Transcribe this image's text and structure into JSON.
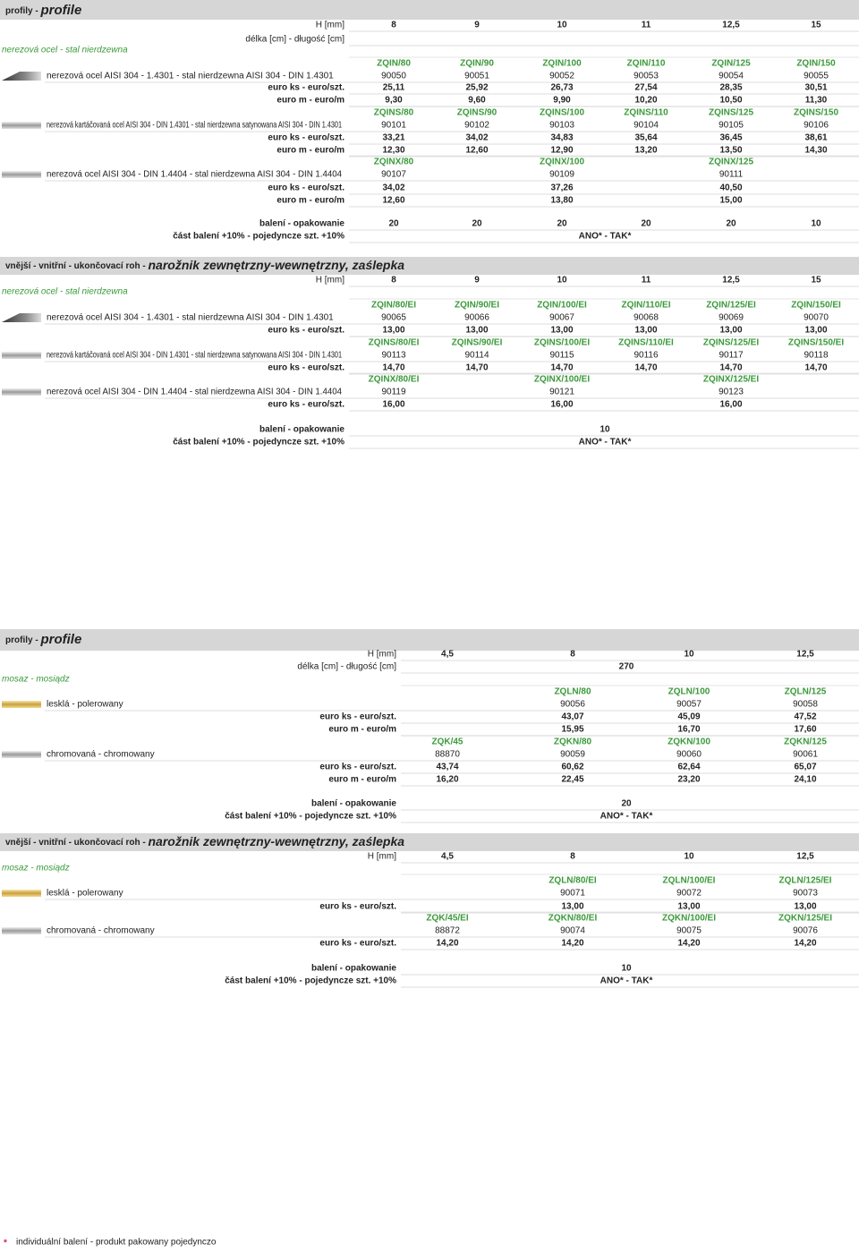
{
  "sections": [
    {
      "title": "profily - ",
      "title_pl": "profile",
      "rows": [
        {
          "kind": "h",
          "label": "H [mm]",
          "cells": [
            "8",
            "9",
            "10",
            "11",
            "12,5",
            "15"
          ]
        },
        {
          "kind": "len",
          "label": "délka [cm] - długość [cm]"
        },
        {
          "kind": "mat",
          "label": "nerezová ocel - stal nierdzewna"
        },
        {
          "kind": "code",
          "cells": [
            "ZQIN/80",
            "ZQIN/90",
            "ZQIN/100",
            "ZQIN/110",
            "ZQIN/125",
            "ZQIN/150"
          ]
        },
        {
          "kind": "desc",
          "label": "nerezová ocel AISI 304 - 1.4301 - stal nierdzewna AISI 304 - DIN 1.4301",
          "cells": [
            "90050",
            "90051",
            "90052",
            "90053",
            "90054",
            "90055"
          ]
        },
        {
          "kind": "price",
          "label": "euro ks - euro/szt.",
          "cells": [
            "25,11",
            "25,92",
            "26,73",
            "27,54",
            "28,35",
            "30,51"
          ]
        },
        {
          "kind": "price",
          "label": "euro m - euro/m",
          "cells": [
            "9,30",
            "9,60",
            "9,90",
            "10,20",
            "10,50",
            "11,30"
          ]
        },
        {
          "kind": "code",
          "cells": [
            "ZQINS/80",
            "ZQINS/90",
            "ZQINS/100",
            "ZQINS/110",
            "ZQINS/125",
            "ZQINS/150"
          ]
        },
        {
          "kind": "desc",
          "label": "nerezová kartáčovaná ocel AISI 304 - DIN 1.4301 - stal nierdzewna satynowana AISI 304 - DIN 1.4301",
          "cells": [
            "90101",
            "90102",
            "90103",
            "90104",
            "90105",
            "90106"
          ]
        },
        {
          "kind": "price",
          "label": "euro ks - euro/szt.",
          "cells": [
            "33,21",
            "34,02",
            "34,83",
            "35,64",
            "36,45",
            "38,61"
          ]
        },
        {
          "kind": "price",
          "label": "euro m - euro/m",
          "cells": [
            "12,30",
            "12,60",
            "12,90",
            "13,20",
            "13,50",
            "14,30"
          ]
        },
        {
          "kind": "code",
          "cells": [
            "ZQINX/80",
            null,
            "ZQINX/100",
            null,
            "ZQINX/125",
            null
          ]
        },
        {
          "kind": "desc",
          "label": "nerezová ocel AISI 304 - DIN 1.4404 - stal nierdzewna AISI 304 - DIN 1.4404",
          "cells": [
            "90107",
            null,
            "90109",
            null,
            "90111",
            null
          ]
        },
        {
          "kind": "price",
          "label": "euro ks - euro/szt.",
          "cells": [
            "34,02",
            null,
            "37,26",
            null,
            "40,50",
            null
          ]
        },
        {
          "kind": "price",
          "label": "euro m - euro/m",
          "cells": [
            "12,60",
            null,
            "13,80",
            null,
            "15,00",
            null
          ]
        },
        {
          "kind": "pack",
          "label": "balení - opakowanie",
          "cells": [
            "20",
            "20",
            "20",
            "20",
            "20",
            "10"
          ]
        },
        {
          "kind": "pack",
          "label": "část balení +10% - pojedyncze szt. +10%",
          "cells": [
            "ANO* - TAK*"
          ]
        }
      ]
    },
    {
      "title": "vnější - vnitřní - ukončovací roh - ",
      "title_pl": "narožnik zewnętrzny-wewnętrzny, zaślepka",
      "rows": [
        {
          "kind": "h",
          "label": "H [mm]",
          "cells": [
            "8",
            "9",
            "10",
            "11",
            "12,5",
            "15"
          ]
        },
        {
          "kind": "mat",
          "label": "nerezová ocel - stal nierdzewna"
        },
        {
          "kind": "code",
          "cells": [
            "ZQIN/80/EI",
            "ZQIN/90/EI",
            "ZQIN/100/EI",
            "ZQIN/110/EI",
            "ZQIN/125/EI",
            "ZQIN/150/EI"
          ]
        },
        {
          "kind": "desc",
          "label": "nerezová ocel AISI 304 - 1.4301 - stal nierdzewna AISI 304 - DIN 1.4301",
          "cells": [
            "90065",
            "90066",
            "90067",
            "90068",
            "90069",
            "90070"
          ]
        },
        {
          "kind": "price",
          "label": "euro ks - euro/szt.",
          "cells": [
            "13,00",
            "13,00",
            "13,00",
            "13,00",
            "13,00",
            "13,00"
          ]
        },
        {
          "kind": "code",
          "cells": [
            "ZQINS/80/EI",
            "ZQINS/90/EI",
            "ZQINS/100/EI",
            "ZQINS/110/EI",
            "ZQINS/125/EI",
            "ZQINS/150/EI"
          ]
        },
        {
          "kind": "desc",
          "label": "nerezová kartáčovaná ocel AISI 304 - DIN 1.4301 - stal nierdzewna satynowana AISI 304 - DIN 1.4301",
          "cells": [
            "90113",
            "90114",
            "90115",
            "90116",
            "90117",
            "90118"
          ]
        },
        {
          "kind": "price",
          "label": "euro ks - euro/szt.",
          "cells": [
            "14,70",
            "14,70",
            "14,70",
            "14,70",
            "14,70",
            "14,70"
          ]
        },
        {
          "kind": "code",
          "cells": [
            "ZQINX/80/EI",
            null,
            "ZQINX/100/EI",
            null,
            "ZQINX/125/EI",
            null
          ]
        },
        {
          "kind": "desc",
          "label": "nerezová ocel AISI 304 - DIN 1.4404 - stal nierdzewna AISI 304 - DIN 1.4404",
          "cells": [
            "90119",
            null,
            "90121",
            null,
            "90123",
            null
          ]
        },
        {
          "kind": "price",
          "label": "euro ks - euro/szt.",
          "cells": [
            "16,00",
            null,
            "16,00",
            null,
            "16,00",
            null
          ]
        },
        {
          "kind": "pack",
          "label": "balení - opakowanie",
          "cells": [
            "10"
          ]
        },
        {
          "kind": "pack",
          "label": "část balení +10% - pojedyncze szt. +10%",
          "cells": [
            "ANO* - TAK*"
          ]
        }
      ]
    },
    {
      "title": "profily - ",
      "title_pl": "profile",
      "rows": [
        {
          "kind": "h",
          "label": "H [mm]",
          "cells": [
            "4,5",
            "8",
            "10",
            "12,5"
          ]
        },
        {
          "kind": "len",
          "label": "délka [cm] - długość [cm]",
          "cells": [
            "270"
          ]
        },
        {
          "kind": "mat",
          "label": "mosaz - mosiądz"
        },
        {
          "kind": "code",
          "cells": [
            null,
            "ZQLN/80",
            "ZQLN/100",
            "ZQLN/125"
          ]
        },
        {
          "kind": "desc",
          "label": "lesklá - polerowany",
          "cells": [
            null,
            "90056",
            "90057",
            "90058"
          ]
        },
        {
          "kind": "price",
          "label": "euro ks - euro/szt.",
          "cells": [
            null,
            "43,07",
            "45,09",
            "47,52"
          ]
        },
        {
          "kind": "price",
          "label": "euro m - euro/m",
          "cells": [
            null,
            "15,95",
            "16,70",
            "17,60"
          ]
        },
        {
          "kind": "code",
          "cells": [
            "ZQK/45",
            "ZQKN/80",
            "ZQKN/100",
            "ZQKN/125"
          ]
        },
        {
          "kind": "desc",
          "label": "chromovaná - chromowany",
          "cells": [
            "88870",
            "90059",
            "90060",
            "90061"
          ]
        },
        {
          "kind": "price",
          "label": "euro ks - euro/szt.",
          "cells": [
            "43,74",
            "60,62",
            "62,64",
            "65,07"
          ]
        },
        {
          "kind": "price",
          "label": "euro m - euro/m",
          "cells": [
            "16,20",
            "22,45",
            "23,20",
            "24,10"
          ]
        },
        {
          "kind": "pack",
          "label": "balení - opakowanie",
          "cells": [
            "20"
          ]
        },
        {
          "kind": "pack",
          "label": "část balení +10% - pojedyncze szt. +10%",
          "cells": [
            "ANO* - TAK*"
          ]
        }
      ]
    },
    {
      "title": "vnější - vnitřní - ukončovací roh - ",
      "title_pl": "narožnik zewnętrzny-wewnętrzny, zaślepka",
      "rows": [
        {
          "kind": "h",
          "label": "H [mm]",
          "cells": [
            "4,5",
            "8",
            "10",
            "12,5"
          ]
        },
        {
          "kind": "mat",
          "label": "mosaz - mosiądz"
        },
        {
          "kind": "code",
          "cells": [
            null,
            "ZQLN/80/EI",
            "ZQLN/100/EI",
            "ZQLN/125/EI"
          ]
        },
        {
          "kind": "desc",
          "label": "lesklá - polerowany",
          "cells": [
            null,
            "90071",
            "90072",
            "90073"
          ]
        },
        {
          "kind": "price",
          "label": "euro ks - euro/szt.",
          "cells": [
            null,
            "13,00",
            "13,00",
            "13,00"
          ]
        },
        {
          "kind": "code",
          "cells": [
            "ZQK/45/EI",
            "ZQKN/80/EI",
            "ZQKN/100/EI",
            "ZQKN/125/EI"
          ]
        },
        {
          "kind": "desc",
          "label": "chromovaná - chromowany",
          "cells": [
            "88872",
            "90074",
            "90075",
            "90076"
          ]
        },
        {
          "kind": "price",
          "label": "euro ks - euro/szt.",
          "cells": [
            "14,20",
            "14,20",
            "14,20",
            "14,20"
          ]
        },
        {
          "kind": "pack",
          "label": "balení - opakowanie",
          "cells": [
            "10"
          ]
        },
        {
          "kind": "pack",
          "label": "část balení +10% - pojedyncze szt. +10%",
          "cells": [
            "ANO* - TAK*"
          ]
        }
      ]
    }
  ],
  "footnote": {
    "mark": "*",
    "text": "individuální balení - produkt pakowany pojedynczo"
  }
}
